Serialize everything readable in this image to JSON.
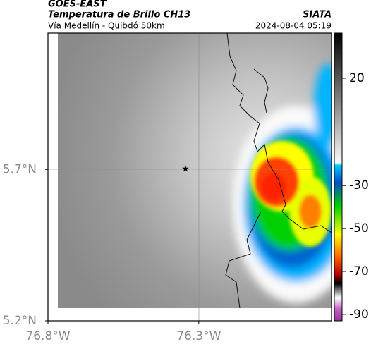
{
  "header": {
    "source": "GOES-EAST",
    "title": "Temperatura de Brillo CH13",
    "brand": "SIATA",
    "route": "Vía Medellín - Quibdó 50km",
    "timestamp": "2024-08-04 05:19"
  },
  "map": {
    "lonlim": [
      -76.8,
      -75.86
    ],
    "latlim": [
      5.2,
      6.15
    ],
    "lonticks": [
      {
        "value": -76.8,
        "label": "76.8°W"
      },
      {
        "value": -76.3,
        "label": "76.3°W"
      }
    ],
    "latticks": [
      {
        "value": 5.7,
        "label": "5.7°N"
      },
      {
        "value": 5.2,
        "label": "5.2°N"
      }
    ]
  },
  "colorbar": {
    "lim": [
      41,
      -93
    ],
    "ticks": [
      20,
      -30,
      -50,
      -70,
      -90
    ]
  }
}
